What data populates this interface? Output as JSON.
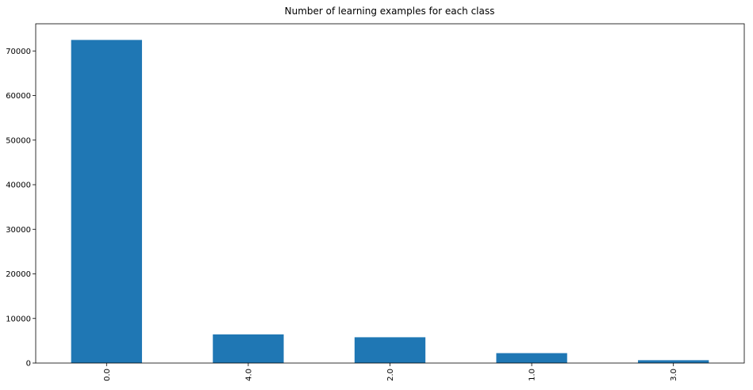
{
  "chart_data": {
    "type": "bar",
    "title": "Number of learning examples for each class",
    "xlabel": "",
    "ylabel": "",
    "categories": [
      "0.0",
      "4.0",
      "2.0",
      "1.0",
      "3.0"
    ],
    "values": [
      72471,
      6431,
      5788,
      2223,
      641
    ],
    "ylim": [
      0,
      76094
    ],
    "yticks": [
      0,
      10000,
      20000,
      30000,
      40000,
      50000,
      60000,
      70000
    ],
    "bar_color": "#1f77b4",
    "grid": false,
    "legend": "none"
  }
}
